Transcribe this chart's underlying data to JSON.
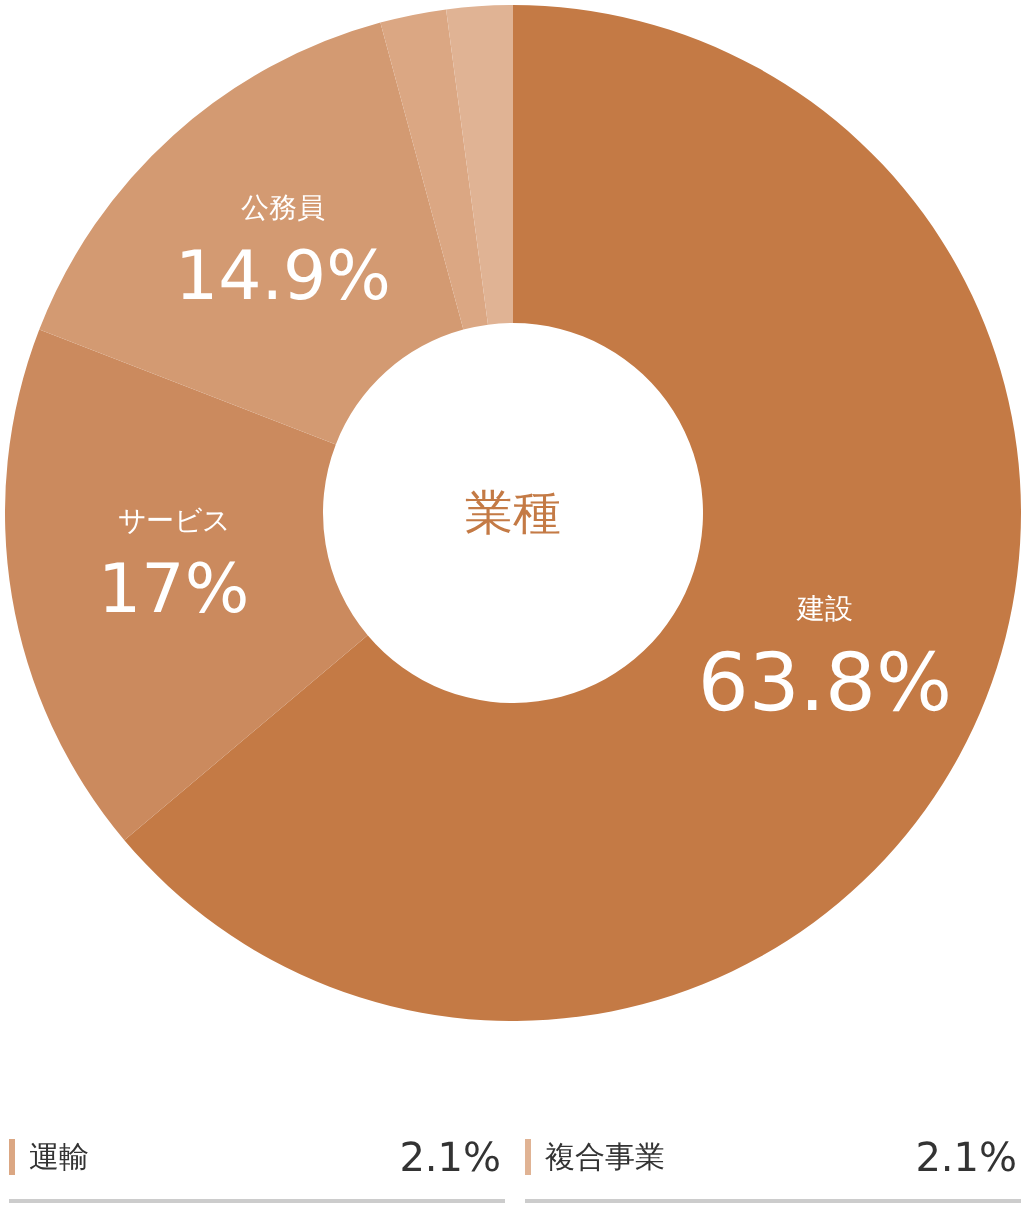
{
  "chart_data": {
    "type": "donut",
    "title": "業種",
    "categories": [
      "建設",
      "サービス",
      "公務員",
      "運輸",
      "複合事業"
    ],
    "values": [
      63.8,
      17,
      14.9,
      2.1,
      2.1
    ],
    "colors": [
      "#c47a45",
      "#cb8a5e",
      "#d39a72",
      "#dba783",
      "#e0b394"
    ],
    "value_labels": [
      "63.8%",
      "17%",
      "14.9%",
      "2.1%",
      "2.1%"
    ],
    "legend": "bottom"
  }
}
